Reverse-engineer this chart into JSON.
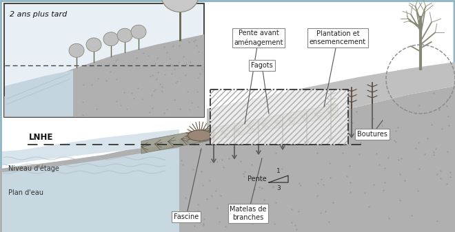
{
  "fig_bg": "#c8d8e2",
  "white": "#ffffff",
  "sky_color": "#dce8f0",
  "soil_main": "#aaaaaa",
  "soil_upper": "#b8b8b8",
  "soil_dots": "#777777",
  "water_bg": "#c5d2dc",
  "water_light": "#d8e4ec",
  "line_dark": "#333333",
  "line_mid": "#666666",
  "branch_color": "#776655",
  "branch_edge": "#554433",
  "label_bg": "#ffffff",
  "label_edge": "#888888",
  "text_color": "#222222",
  "lnhe_text": "LNHE",
  "niveau_text": "Niveau d'étage",
  "plan_eau_text": "Plan d'eau",
  "fascine_text": "Fascine",
  "matelas_text": "Matelas de\nbranches",
  "pente_text": "Pente",
  "pente_num": "1",
  "pente_den": "3",
  "pente_avant_text": "Pente avant\naménagement",
  "fagots_text": "Fagots",
  "plantation_text": "Plantation et\nensemencement",
  "boutures_text": "Boutures",
  "inset_title": "2 ans plus tard"
}
